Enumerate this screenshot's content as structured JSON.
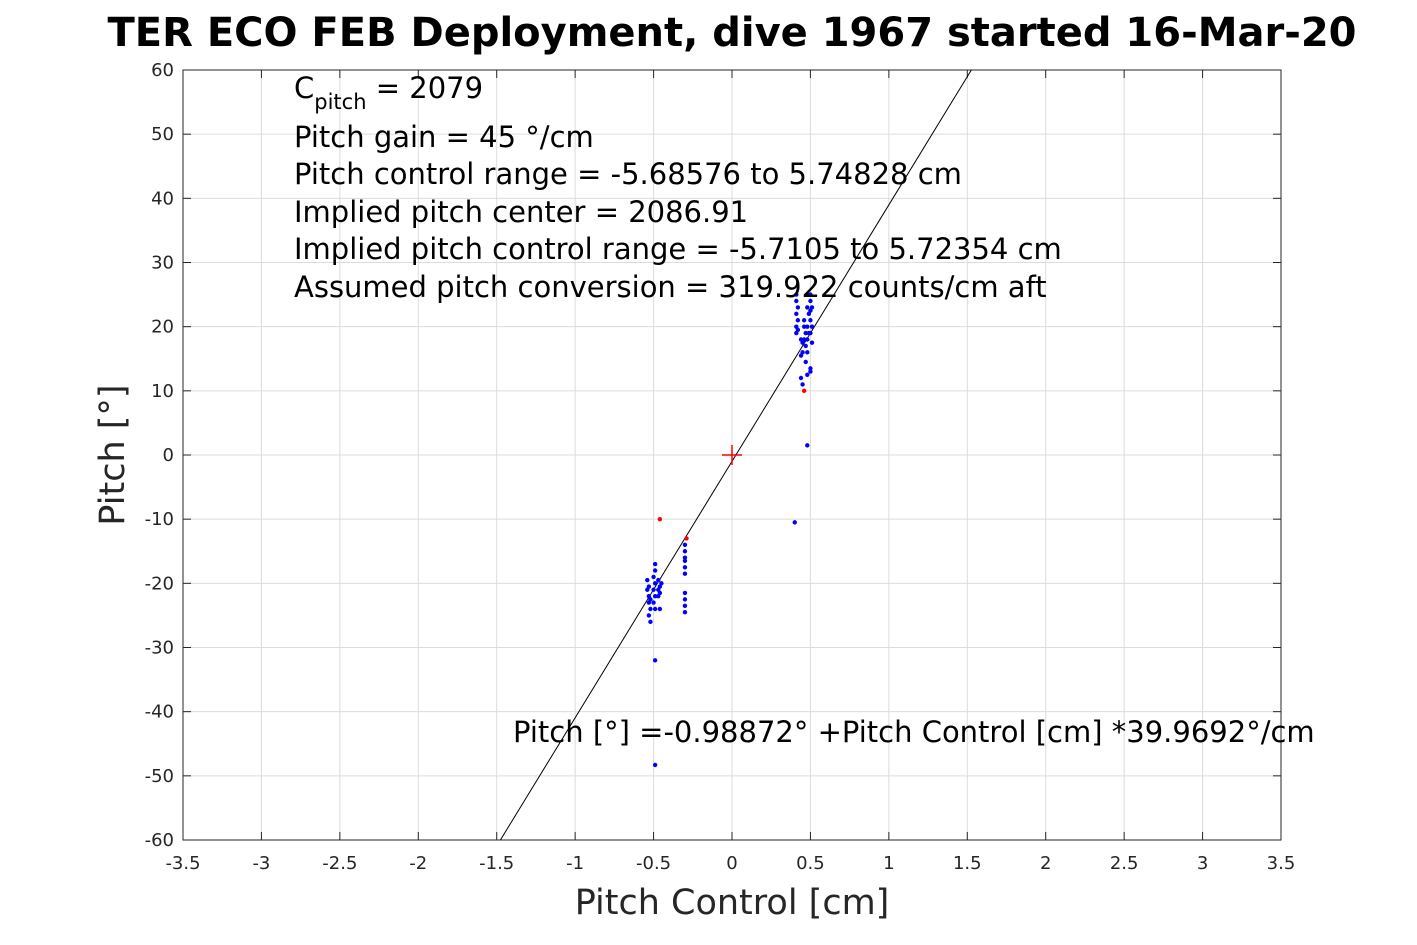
{
  "chart_data": {
    "type": "scatter",
    "title": "TER ECO FEB Deployment, dive 1967 started 16-Mar-20",
    "xlabel": "Pitch Control [cm]",
    "ylabel": "Pitch [°]",
    "xlim": [
      -3.5,
      3.5
    ],
    "ylim": [
      -60,
      60
    ],
    "grid": true,
    "x_ticks": [
      "-3.5",
      "-3",
      "-2.5",
      "-2",
      "-1.5",
      "-1",
      "-0.5",
      "0",
      "0.5",
      "1",
      "1.5",
      "2",
      "2.5",
      "3",
      "3.5"
    ],
    "y_ticks": [
      "60",
      "50",
      "40",
      "30",
      "20",
      "10",
      "0",
      "-10",
      "-20",
      "-30",
      "-40",
      "-50",
      "-60"
    ],
    "annotations": {
      "c_pitch_main": "C",
      "c_pitch_sub": "pitch",
      "c_pitch_value": " = 2079",
      "lines": [
        "Pitch gain = 45 °/cm",
        "Pitch control range = -5.68576 to 5.74828 cm",
        "Implied pitch center = 2086.91",
        "Implied pitch control range = -5.7105 to 5.72354 cm",
        "Assumed pitch conversion = 319.922 counts/cm aft"
      ],
      "fit_equation": "Pitch [°] =-0.98872° +Pitch Control [cm] *39.9692°/cm"
    },
    "fit_line": {
      "intercept": -0.98872,
      "slope": 39.9692,
      "color": "#000000"
    },
    "center_marker": {
      "x": 0,
      "y": 0,
      "color": "#ff0000"
    },
    "series": [
      {
        "color": "#0000ff",
        "points": [
          [
            0.41,
            25
          ],
          [
            0.41,
            24
          ],
          [
            0.42,
            23
          ],
          [
            0.41,
            22
          ],
          [
            0.42,
            21
          ],
          [
            0.41,
            20
          ],
          [
            0.42,
            19.5
          ],
          [
            0.41,
            19
          ],
          [
            0.44,
            18
          ],
          [
            0.45,
            17.5
          ],
          [
            0.45,
            16
          ],
          [
            0.44,
            15.5
          ],
          [
            0.44,
            12
          ],
          [
            0.45,
            11
          ],
          [
            0.46,
            21
          ],
          [
            0.46,
            20
          ],
          [
            0.47,
            19
          ],
          [
            0.46,
            18
          ],
          [
            0.47,
            17
          ],
          [
            0.48,
            25
          ],
          [
            0.48,
            23
          ],
          [
            0.49,
            22
          ],
          [
            0.48,
            20
          ],
          [
            0.49,
            19
          ],
          [
            0.48,
            18
          ],
          [
            0.48,
            16
          ],
          [
            0.47,
            14.5
          ],
          [
            0.48,
            12.5
          ],
          [
            0.5,
            25
          ],
          [
            0.5,
            24
          ],
          [
            0.51,
            23
          ],
          [
            0.5,
            22.5
          ],
          [
            0.5,
            21
          ],
          [
            0.51,
            20
          ],
          [
            0.5,
            19
          ],
          [
            0.51,
            17.5
          ],
          [
            0.5,
            13.5
          ],
          [
            0.5,
            13
          ],
          [
            0.48,
            1.5
          ],
          [
            0.4,
            -10.5
          ],
          [
            -0.54,
            -19.5
          ],
          [
            -0.53,
            -20.5
          ],
          [
            -0.54,
            -21
          ],
          [
            -0.53,
            -22
          ],
          [
            -0.52,
            -22.5
          ],
          [
            -0.53,
            -23
          ],
          [
            -0.52,
            -24
          ],
          [
            -0.53,
            -25
          ],
          [
            -0.52,
            -26
          ],
          [
            -0.49,
            -17
          ],
          [
            -0.49,
            -18
          ],
          [
            -0.5,
            -19
          ],
          [
            -0.49,
            -20
          ],
          [
            -0.5,
            -21
          ],
          [
            -0.49,
            -22
          ],
          [
            -0.5,
            -23
          ],
          [
            -0.49,
            -24
          ],
          [
            -0.47,
            -19.5
          ],
          [
            -0.46,
            -20.5
          ],
          [
            -0.47,
            -21
          ],
          [
            -0.46,
            -21.5
          ],
          [
            -0.47,
            -22
          ],
          [
            -0.46,
            -24
          ],
          [
            -0.45,
            -20
          ],
          [
            -0.3,
            -14
          ],
          [
            -0.3,
            -15
          ],
          [
            -0.3,
            -16
          ],
          [
            -0.3,
            -16.5
          ],
          [
            -0.3,
            -17.5
          ],
          [
            -0.3,
            -18.5
          ],
          [
            -0.3,
            -21.5
          ],
          [
            -0.3,
            -22.5
          ],
          [
            -0.3,
            -23.5
          ],
          [
            -0.3,
            -24.5
          ],
          [
            -0.49,
            -32
          ],
          [
            -0.49,
            -48.3
          ]
        ]
      },
      {
        "color": "#ff0000",
        "points": [
          [
            0.46,
            10
          ],
          [
            -0.46,
            -10
          ],
          [
            -0.29,
            -13
          ]
        ]
      }
    ]
  }
}
